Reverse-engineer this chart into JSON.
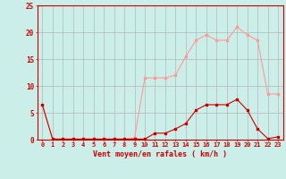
{
  "x": [
    0,
    1,
    2,
    3,
    4,
    5,
    6,
    7,
    8,
    9,
    10,
    11,
    12,
    13,
    14,
    15,
    16,
    17,
    18,
    19,
    20,
    21,
    22,
    23
  ],
  "y_rafales": [
    6.5,
    0.1,
    0.1,
    0.1,
    0.1,
    0.1,
    0.1,
    0.1,
    0.1,
    0.3,
    11.5,
    11.5,
    11.5,
    12.0,
    15.5,
    18.5,
    19.5,
    18.5,
    18.5,
    21.0,
    19.5,
    18.5,
    8.5,
    8.5
  ],
  "y_moyen": [
    6.5,
    0.1,
    0.1,
    0.1,
    0.1,
    0.1,
    0.1,
    0.1,
    0.1,
    0.1,
    0.1,
    1.2,
    1.2,
    2.0,
    3.0,
    5.5,
    6.5,
    6.5,
    6.5,
    7.5,
    5.5,
    2.0,
    0.2,
    0.5
  ],
  "bg_color": "#cceee8",
  "grid_color": "#aaaaaa",
  "line_color_rafales": "#ff9999",
  "line_color_moyen": "#cc0000",
  "xlabel": "Vent moyen/en rafales ( km/h )",
  "xlabel_color": "#cc0000",
  "tick_color": "#cc0000",
  "spine_color": "#cc0000",
  "ylim": [
    0,
    25
  ],
  "yticks": [
    0,
    5,
    10,
    15,
    20,
    25
  ],
  "xlim": [
    -0.5,
    23.5
  ],
  "tick_fontsize": 5,
  "xlabel_fontsize": 6,
  "ytick_fontsize": 5.5
}
